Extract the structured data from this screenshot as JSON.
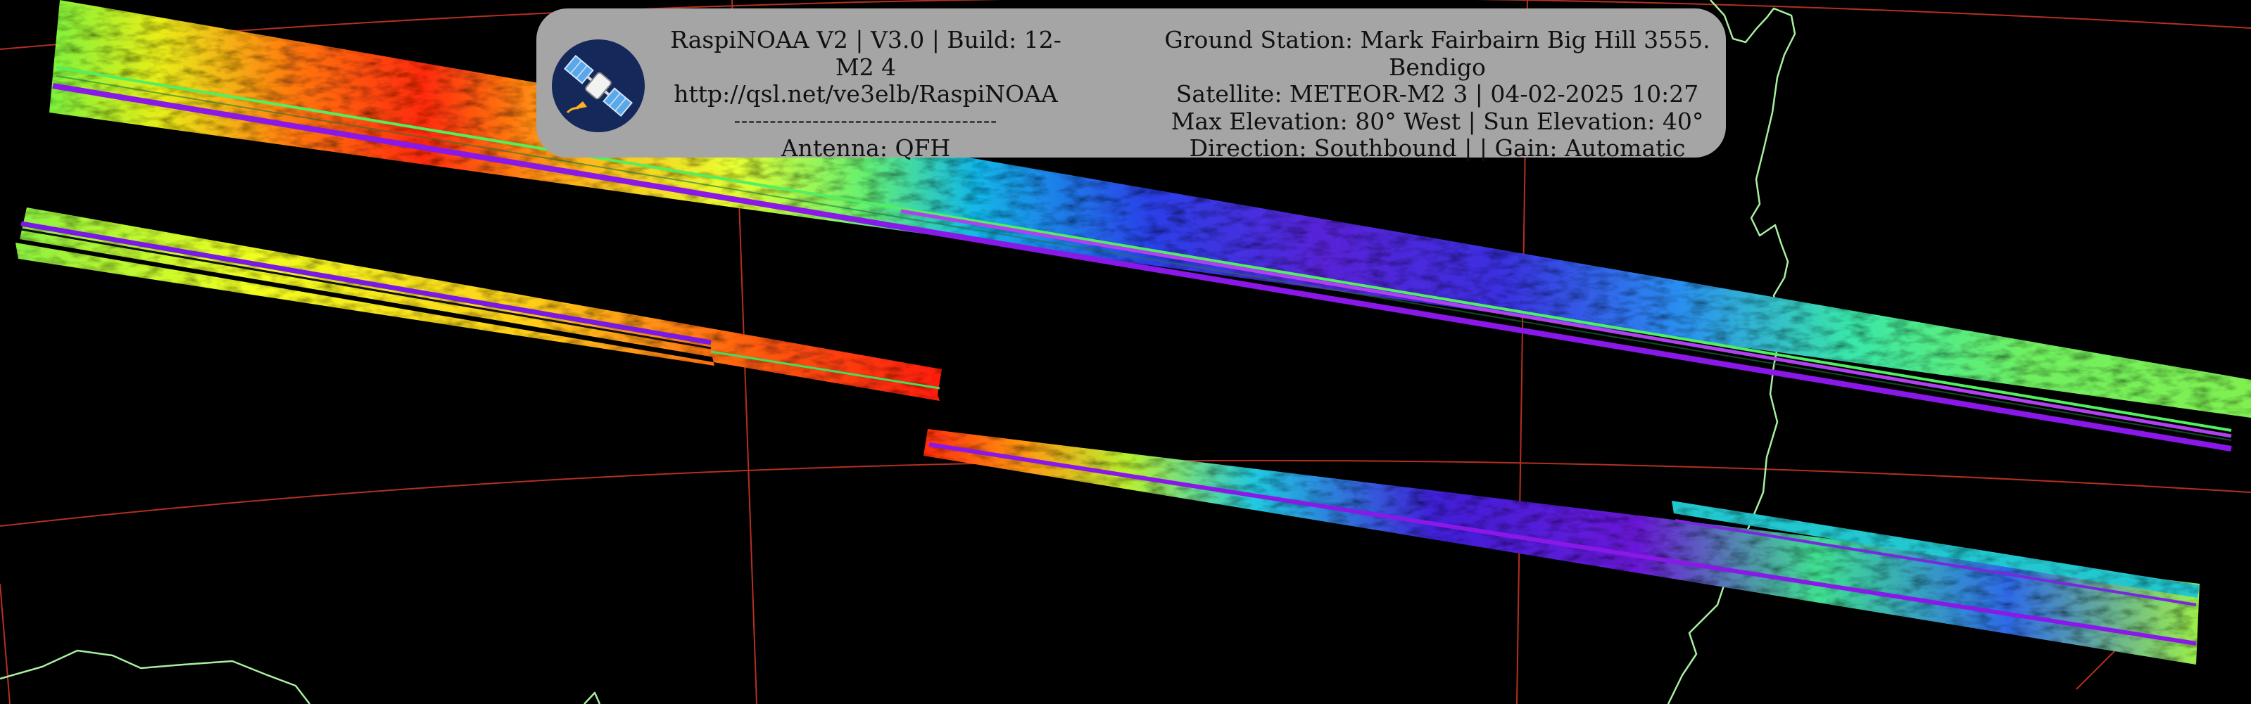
{
  "overlay": {
    "software": "RaspiNOAA V2 | V3.0 | Build: 12-M2 4",
    "url": "http://qsl.net/ve3elb/RaspiNOAA",
    "separator": "-------------------------------------",
    "antenna": "Antenna: QFH",
    "ground_station": "Ground Station: Mark Fairbairn Big Hill 3555.",
    "location": "Bendigo",
    "satellite": "Satellite: METEOR-M2 3 | 04-02-2025 10:27",
    "elevation": "Max Elevation: 80° West | Sun Elevation: 40°",
    "direction": "Direction: Southbound | | Gain: Automatic"
  },
  "colors": {
    "background": "#000000",
    "graticule": "#b4301f",
    "coastline": "#a8f0a0",
    "overlay_bg": "#a5a5a5",
    "logo_bg": "#15285a"
  },
  "icons": {
    "logo": "satellite-icon"
  }
}
